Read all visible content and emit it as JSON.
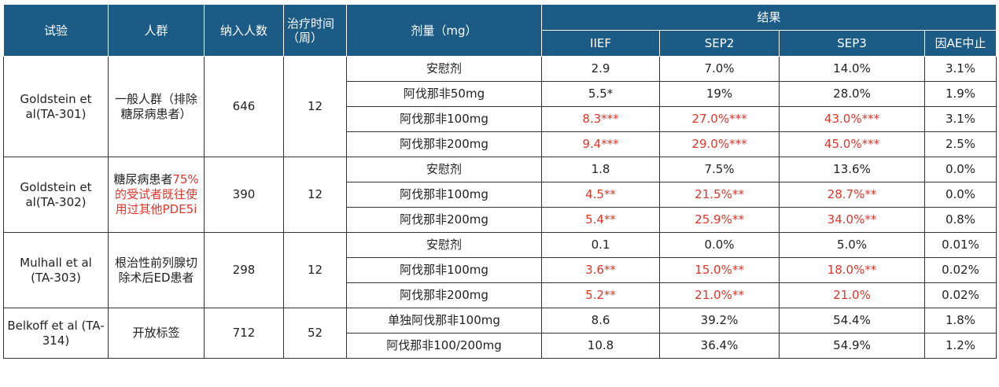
{
  "table": {
    "header": {
      "trial": "试验",
      "population": "人群",
      "enrolled": "纳入人数",
      "weeks": "治疗时间（周）",
      "dose": "剂量（mg）",
      "results": "结果",
      "columns": [
        "IIEF",
        "SEP2",
        "SEP3",
        "因AE中止"
      ]
    },
    "highlight_color": "#e3342a",
    "groups": [
      {
        "trial": "Goldstein et al(TA-301)",
        "population": [
          "一般人群（排除糖尿病患者）"
        ],
        "population_highlight": [
          false
        ],
        "enrolled": "646",
        "weeks": "12",
        "rows": [
          {
            "dose": "安慰剂",
            "results": [
              "2.9",
              "7.0%",
              "14.0%",
              "3.1%"
            ],
            "highlight": [
              false,
              false,
              false,
              false
            ]
          },
          {
            "dose": "阿伐那非50mg",
            "results": [
              "5.5*",
              "19%",
              "28.0%",
              "1.9%"
            ],
            "highlight": [
              false,
              false,
              false,
              false
            ]
          },
          {
            "dose": "阿伐那非100mg",
            "results": [
              "8.3***",
              "27.0%***",
              "43.0%***",
              "3.1%"
            ],
            "highlight": [
              true,
              true,
              true,
              false
            ]
          },
          {
            "dose": "阿伐那非200mg",
            "results": [
              "9.4***",
              "29.0%***",
              "45.0%***",
              "2.5%"
            ],
            "highlight": [
              true,
              true,
              true,
              false
            ]
          }
        ]
      },
      {
        "trial": "Goldstein et al(TA-302)",
        "population": [
          "糖尿病患者",
          "75%的受试者既往使用过其他PDE5i"
        ],
        "population_highlight": [
          false,
          true
        ],
        "enrolled": "390",
        "weeks": "12",
        "rows": [
          {
            "dose": "安慰剂",
            "results": [
              "1.8",
              "7.5%",
              "13.6%",
              "0.0%"
            ],
            "highlight": [
              false,
              false,
              false,
              false
            ]
          },
          {
            "dose": "阿伐那非100mg",
            "results": [
              "4.5**",
              "21.5%**",
              "28.7%**",
              "0.0%"
            ],
            "highlight": [
              true,
              true,
              true,
              false
            ]
          },
          {
            "dose": "阿伐那非200mg",
            "results": [
              "5.4**",
              "25.9%**",
              "34.0%**",
              "0.8%"
            ],
            "highlight": [
              true,
              true,
              true,
              false
            ]
          }
        ]
      },
      {
        "trial": "Mulhall et al (TA-303)",
        "population": [
          "根治性前列腺切除术后ED患者"
        ],
        "population_highlight": [
          false
        ],
        "enrolled": "298",
        "weeks": "12",
        "rows": [
          {
            "dose": "安慰剂",
            "results": [
              "0.1",
              "0.0%",
              "5.0%",
              "0.01%"
            ],
            "highlight": [
              false,
              false,
              false,
              false
            ]
          },
          {
            "dose": "阿伐那非100mg",
            "results": [
              "3.6**",
              "15.0%**",
              "18.0%**",
              "0.02%"
            ],
            "highlight": [
              true,
              true,
              true,
              false
            ]
          },
          {
            "dose": "阿伐那非200mg",
            "results": [
              "5.2**",
              "21.0%**",
              "21.0%",
              "0.02%"
            ],
            "highlight": [
              true,
              true,
              true,
              false
            ]
          }
        ]
      },
      {
        "trial": "Belkoff et al (TA-314)",
        "population": [
          "开放标签"
        ],
        "population_highlight": [
          false
        ],
        "enrolled": "712",
        "weeks": "52",
        "rows": [
          {
            "dose": "单独阿伐那非100mg",
            "results": [
              "8.6",
              "39.2%",
              "54.4%",
              "1.8%"
            ],
            "highlight": [
              false,
              false,
              false,
              false
            ]
          },
          {
            "dose": "阿伐那非100/200mg",
            "results": [
              "10.8",
              "36.4%",
              "54.9%",
              "1.2%"
            ],
            "highlight": [
              false,
              false,
              false,
              false
            ]
          }
        ]
      }
    ]
  }
}
